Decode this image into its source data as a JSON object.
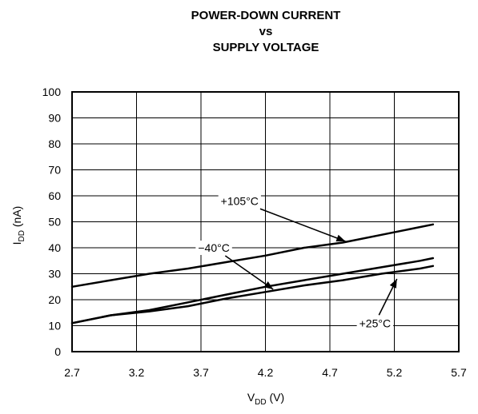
{
  "chart_data": {
    "type": "line",
    "title": {
      "line1": "POWER-DOWN CURRENT",
      "line2": "vs",
      "line3": "SUPPLY VOLTAGE"
    },
    "xlabel": {
      "main": "V",
      "sub": "DD",
      "unit": " (V)"
    },
    "ylabel": {
      "main": "I",
      "sub": "DD",
      "unit": " (nA)"
    },
    "xlim": [
      2.7,
      5.7
    ],
    "ylim": [
      0,
      100
    ],
    "x_ticks": [
      "2.7",
      "3.2",
      "3.7",
      "4.2",
      "4.7",
      "5.2",
      "5.7"
    ],
    "y_ticks": [
      "0",
      "10",
      "20",
      "30",
      "40",
      "50",
      "60",
      "70",
      "80",
      "90",
      "100"
    ],
    "grid": true,
    "series": [
      {
        "name": "+105°C",
        "points": [
          [
            2.7,
            25
          ],
          [
            3.0,
            27.5
          ],
          [
            3.3,
            30
          ],
          [
            3.6,
            32
          ],
          [
            3.9,
            34.5
          ],
          [
            4.2,
            37
          ],
          [
            4.5,
            40
          ],
          [
            4.8,
            42
          ],
          [
            5.1,
            45
          ],
          [
            5.5,
            49
          ]
        ]
      },
      {
        "name": "−40°C",
        "points": [
          [
            2.7,
            11
          ],
          [
            3.0,
            14
          ],
          [
            3.3,
            16
          ],
          [
            3.6,
            19
          ],
          [
            3.9,
            22
          ],
          [
            4.2,
            25
          ],
          [
            4.5,
            27.5
          ],
          [
            4.8,
            30
          ],
          [
            5.1,
            32.5
          ],
          [
            5.4,
            35
          ],
          [
            5.5,
            36
          ]
        ]
      },
      {
        "name": "+25°C",
        "points": [
          [
            2.7,
            11
          ],
          [
            3.0,
            14
          ],
          [
            3.3,
            15.5
          ],
          [
            3.6,
            17.5
          ],
          [
            3.9,
            20.5
          ],
          [
            4.2,
            23
          ],
          [
            4.5,
            25.5
          ],
          [
            4.8,
            27.5
          ],
          [
            5.1,
            30
          ],
          [
            5.4,
            32
          ],
          [
            5.5,
            33
          ]
        ]
      }
    ],
    "annotations": [
      {
        "text": "+105°C",
        "label_at": [
          4.0,
          58
        ],
        "arrow_to": [
          4.82,
          42.5
        ]
      },
      {
        "text": "−40°C",
        "label_at": [
          3.8,
          40
        ],
        "arrow_to": [
          4.26,
          24
        ]
      },
      {
        "text": "+25°C",
        "label_at": [
          5.05,
          11
        ],
        "arrow_to": [
          5.22,
          28
        ]
      }
    ]
  }
}
